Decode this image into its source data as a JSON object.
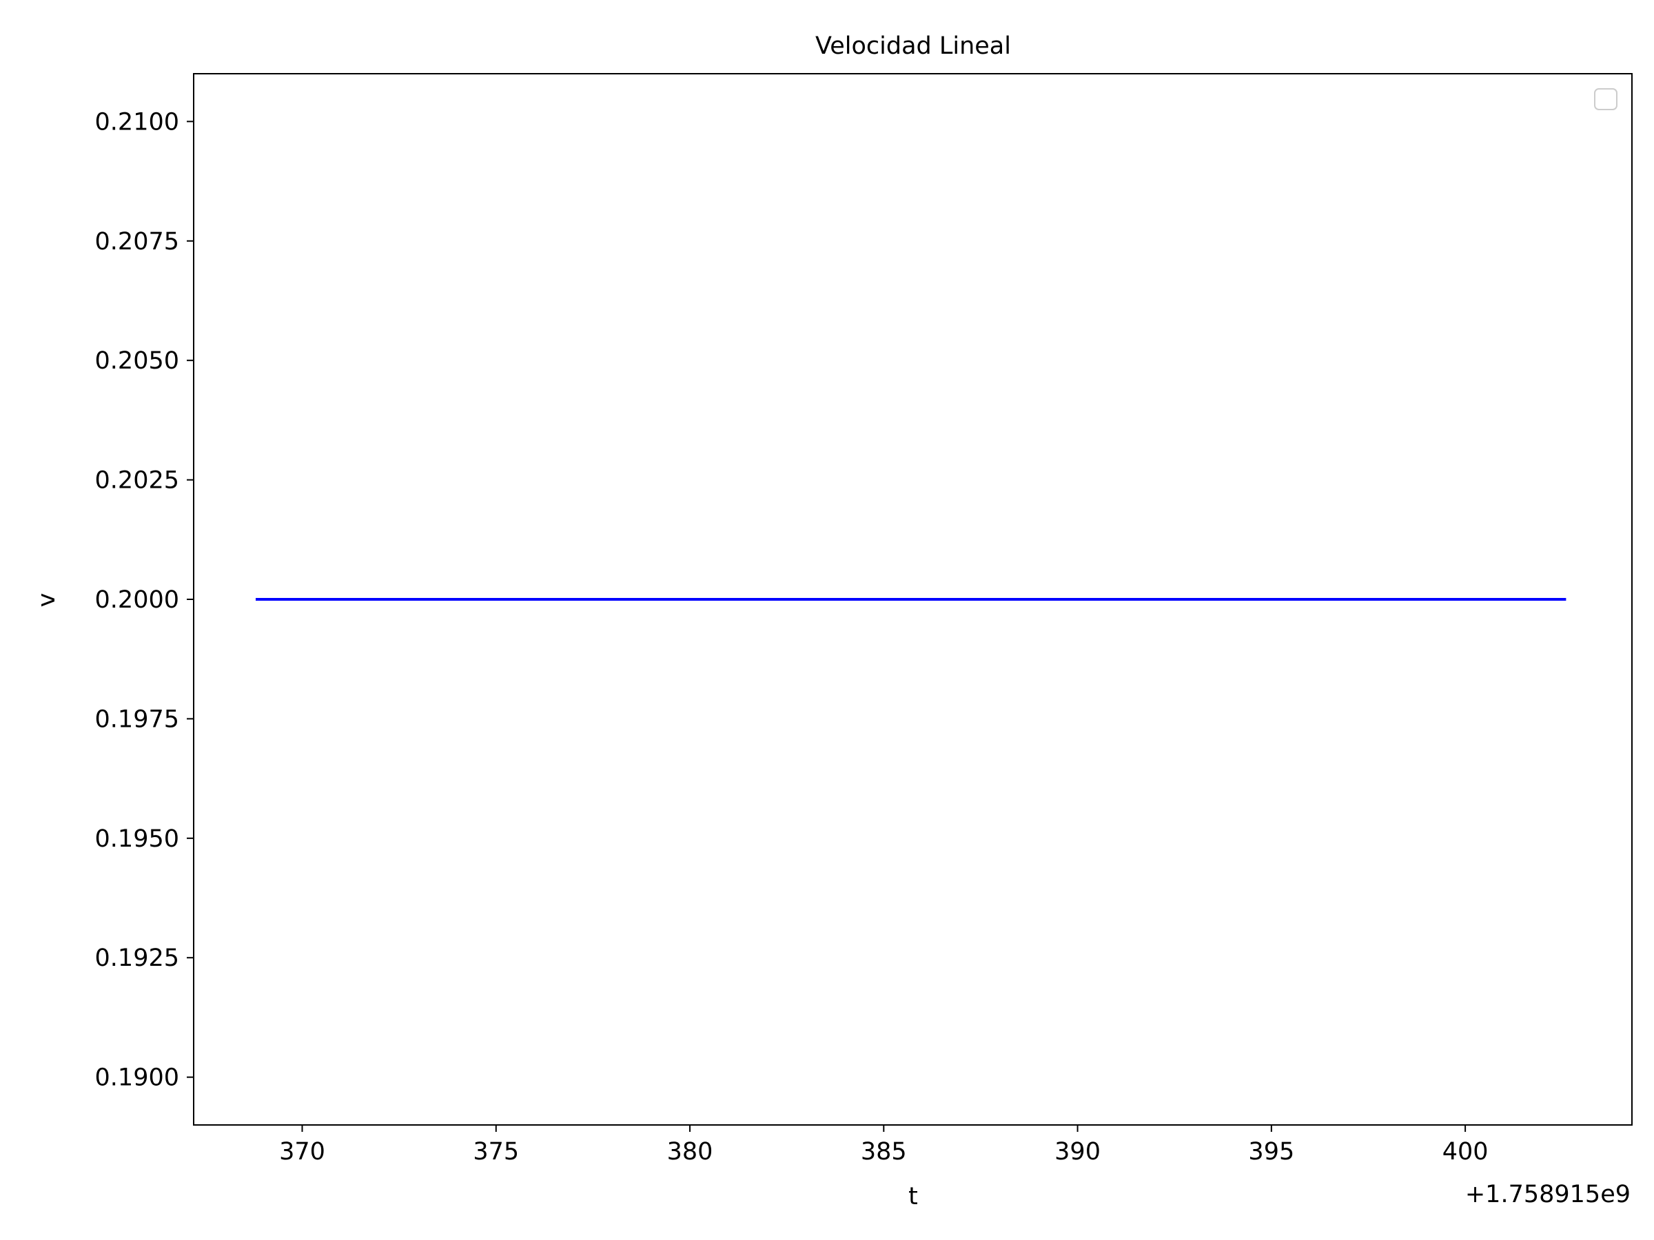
{
  "chart_data": {
    "type": "line",
    "title": "Velocidad Lineal",
    "xlabel": "t",
    "ylabel": "v",
    "x_offset_label": "+1.758915e9",
    "xlim": [
      367.2,
      404.3
    ],
    "ylim": [
      0.189,
      0.211
    ],
    "x_ticks": [
      370,
      375,
      380,
      385,
      390,
      395,
      400
    ],
    "y_ticks": [
      0.19,
      0.1925,
      0.195,
      0.1975,
      0.2,
      0.2025,
      0.205,
      0.2075,
      0.21
    ],
    "y_tick_labels": [
      "0.1900",
      "0.1925",
      "0.1950",
      "0.1975",
      "0.2000",
      "0.2025",
      "0.2050",
      "0.2075",
      "0.2100"
    ],
    "grid": false,
    "legend": "top-right, empty",
    "series": [
      {
        "color": "#0000ff",
        "x": [
          368.8,
          402.6
        ],
        "y": [
          0.2,
          0.2
        ]
      }
    ]
  }
}
